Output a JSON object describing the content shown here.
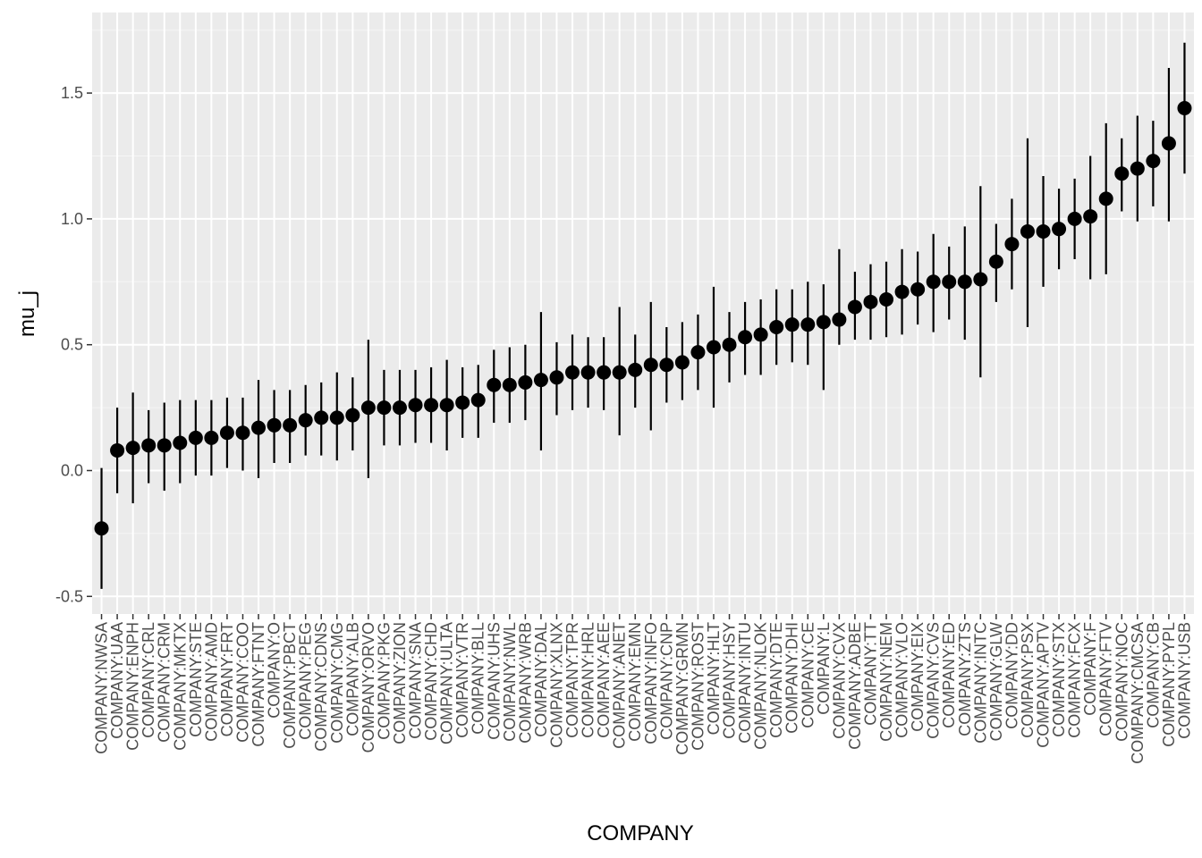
{
  "chart_data": {
    "type": "scatter",
    "xlabel": "COMPANY",
    "ylabel": "mu_j",
    "ylim": [
      -0.57,
      1.82
    ],
    "y_ticks": [
      -0.5,
      0.0,
      0.5,
      1.0,
      1.5
    ],
    "y_tick_labels": [
      "-0.5",
      "0.0",
      "0.5",
      "1.0",
      "1.5"
    ],
    "grid": true,
    "error_bars": true,
    "point_color": "#000000",
    "panel_color": "#ebebeb",
    "categories": [
      "COMPANY:NWSA",
      "COMPANY:UAA",
      "COMPANY:ENPH",
      "COMPANY:CRL",
      "COMPANY:CRM",
      "COMPANY:MKTX",
      "COMPANY:STE",
      "COMPANY:AMD",
      "COMPANY:FRT",
      "COMPANY:COO",
      "COMPANY:FTNT",
      "COMPANY:O",
      "COMPANY:PBCT",
      "COMPANY:PEG",
      "COMPANY:CDNS",
      "COMPANY:CMG",
      "COMPANY:ALB",
      "COMPANY:ORVO",
      "COMPANY:PKG",
      "COMPANY:ZION",
      "COMPANY:SNA",
      "COMPANY:CHD",
      "COMPANY:ULTA",
      "COMPANY:VTR",
      "COMPANY:BLL",
      "COMPANY:UHS",
      "COMPANY:NWL",
      "COMPANY:WRB",
      "COMPANY:DAL",
      "COMPANY:XLNX",
      "COMPANY:TPR",
      "COMPANY:HRL",
      "COMPANY:AEE",
      "COMPANY:ANET",
      "COMPANY:EMN",
      "COMPANY:INFO",
      "COMPANY:CNP",
      "COMPANY:GRMN",
      "COMPANY:ROST",
      "COMPANY:HLT",
      "COMPANY:HSY",
      "COMPANY:INTU",
      "COMPANY:NLOK",
      "COMPANY:DTE",
      "COMPANY:DHI",
      "COMPANY:CE",
      "COMPANY:L",
      "COMPANY:CVX",
      "COMPANY:ADBE",
      "COMPANY:TT",
      "COMPANY:NEM",
      "COMPANY:VLO",
      "COMPANY:EIX",
      "COMPANY:CVS",
      "COMPANY:ED",
      "COMPANY:ZTS",
      "COMPANY:INTC",
      "COMPANY:GLW",
      "COMPANY:DD",
      "COMPANY:PSX",
      "COMPANY:APTV",
      "COMPANY:STX",
      "COMPANY:FCX",
      "COMPANY:F",
      "COMPANY:FTV",
      "COMPANY:NOC",
      "COMPANY:CMCSA",
      "COMPANY:CB",
      "COMPANY:PYPL",
      "COMPANY:USB"
    ],
    "values": [
      -0.23,
      0.08,
      0.09,
      0.1,
      0.1,
      0.11,
      0.13,
      0.13,
      0.15,
      0.15,
      0.17,
      0.18,
      0.18,
      0.2,
      0.21,
      0.21,
      0.22,
      0.25,
      0.25,
      0.25,
      0.26,
      0.26,
      0.26,
      0.27,
      0.28,
      0.34,
      0.34,
      0.35,
      0.36,
      0.37,
      0.39,
      0.39,
      0.39,
      0.39,
      0.4,
      0.42,
      0.42,
      0.43,
      0.47,
      0.49,
      0.5,
      0.53,
      0.54,
      0.57,
      0.58,
      0.58,
      0.59,
      0.6,
      0.65,
      0.67,
      0.68,
      0.71,
      0.72,
      0.75,
      0.75,
      0.75,
      0.76,
      0.83,
      0.9,
      0.95,
      0.95,
      0.96,
      1.0,
      1.01,
      1.08,
      1.18,
      1.2,
      1.23,
      1.3,
      1.44
    ],
    "lower": [
      -0.47,
      -0.09,
      -0.13,
      -0.05,
      -0.08,
      -0.05,
      -0.02,
      -0.02,
      0.01,
      0.0,
      -0.03,
      0.03,
      0.03,
      0.06,
      0.06,
      0.04,
      0.08,
      -0.03,
      0.1,
      0.1,
      0.11,
      0.11,
      0.08,
      0.13,
      0.13,
      0.19,
      0.19,
      0.2,
      0.08,
      0.22,
      0.24,
      0.25,
      0.24,
      0.14,
      0.25,
      0.16,
      0.27,
      0.28,
      0.32,
      0.25,
      0.35,
      0.38,
      0.38,
      0.42,
      0.43,
      0.42,
      0.32,
      0.5,
      0.52,
      0.52,
      0.53,
      0.54,
      0.58,
      0.55,
      0.6,
      0.52,
      0.37,
      0.67,
      0.72,
      0.57,
      0.73,
      0.8,
      0.84,
      0.76,
      0.78,
      1.03,
      0.99,
      1.05,
      0.99,
      1.18
    ],
    "upper": [
      0.01,
      0.25,
      0.31,
      0.24,
      0.27,
      0.28,
      0.28,
      0.28,
      0.29,
      0.29,
      0.36,
      0.32,
      0.32,
      0.34,
      0.35,
      0.39,
      0.37,
      0.52,
      0.4,
      0.4,
      0.4,
      0.41,
      0.44,
      0.41,
      0.42,
      0.48,
      0.49,
      0.5,
      0.63,
      0.51,
      0.54,
      0.53,
      0.53,
      0.65,
      0.54,
      0.67,
      0.57,
      0.59,
      0.62,
      0.73,
      0.63,
      0.67,
      0.68,
      0.72,
      0.72,
      0.75,
      0.74,
      0.88,
      0.79,
      0.82,
      0.83,
      0.88,
      0.87,
      0.94,
      0.89,
      0.97,
      1.13,
      0.98,
      1.08,
      1.32,
      1.17,
      1.12,
      1.16,
      1.25,
      1.38,
      1.32,
      1.41,
      1.39,
      1.6,
      1.7
    ]
  }
}
